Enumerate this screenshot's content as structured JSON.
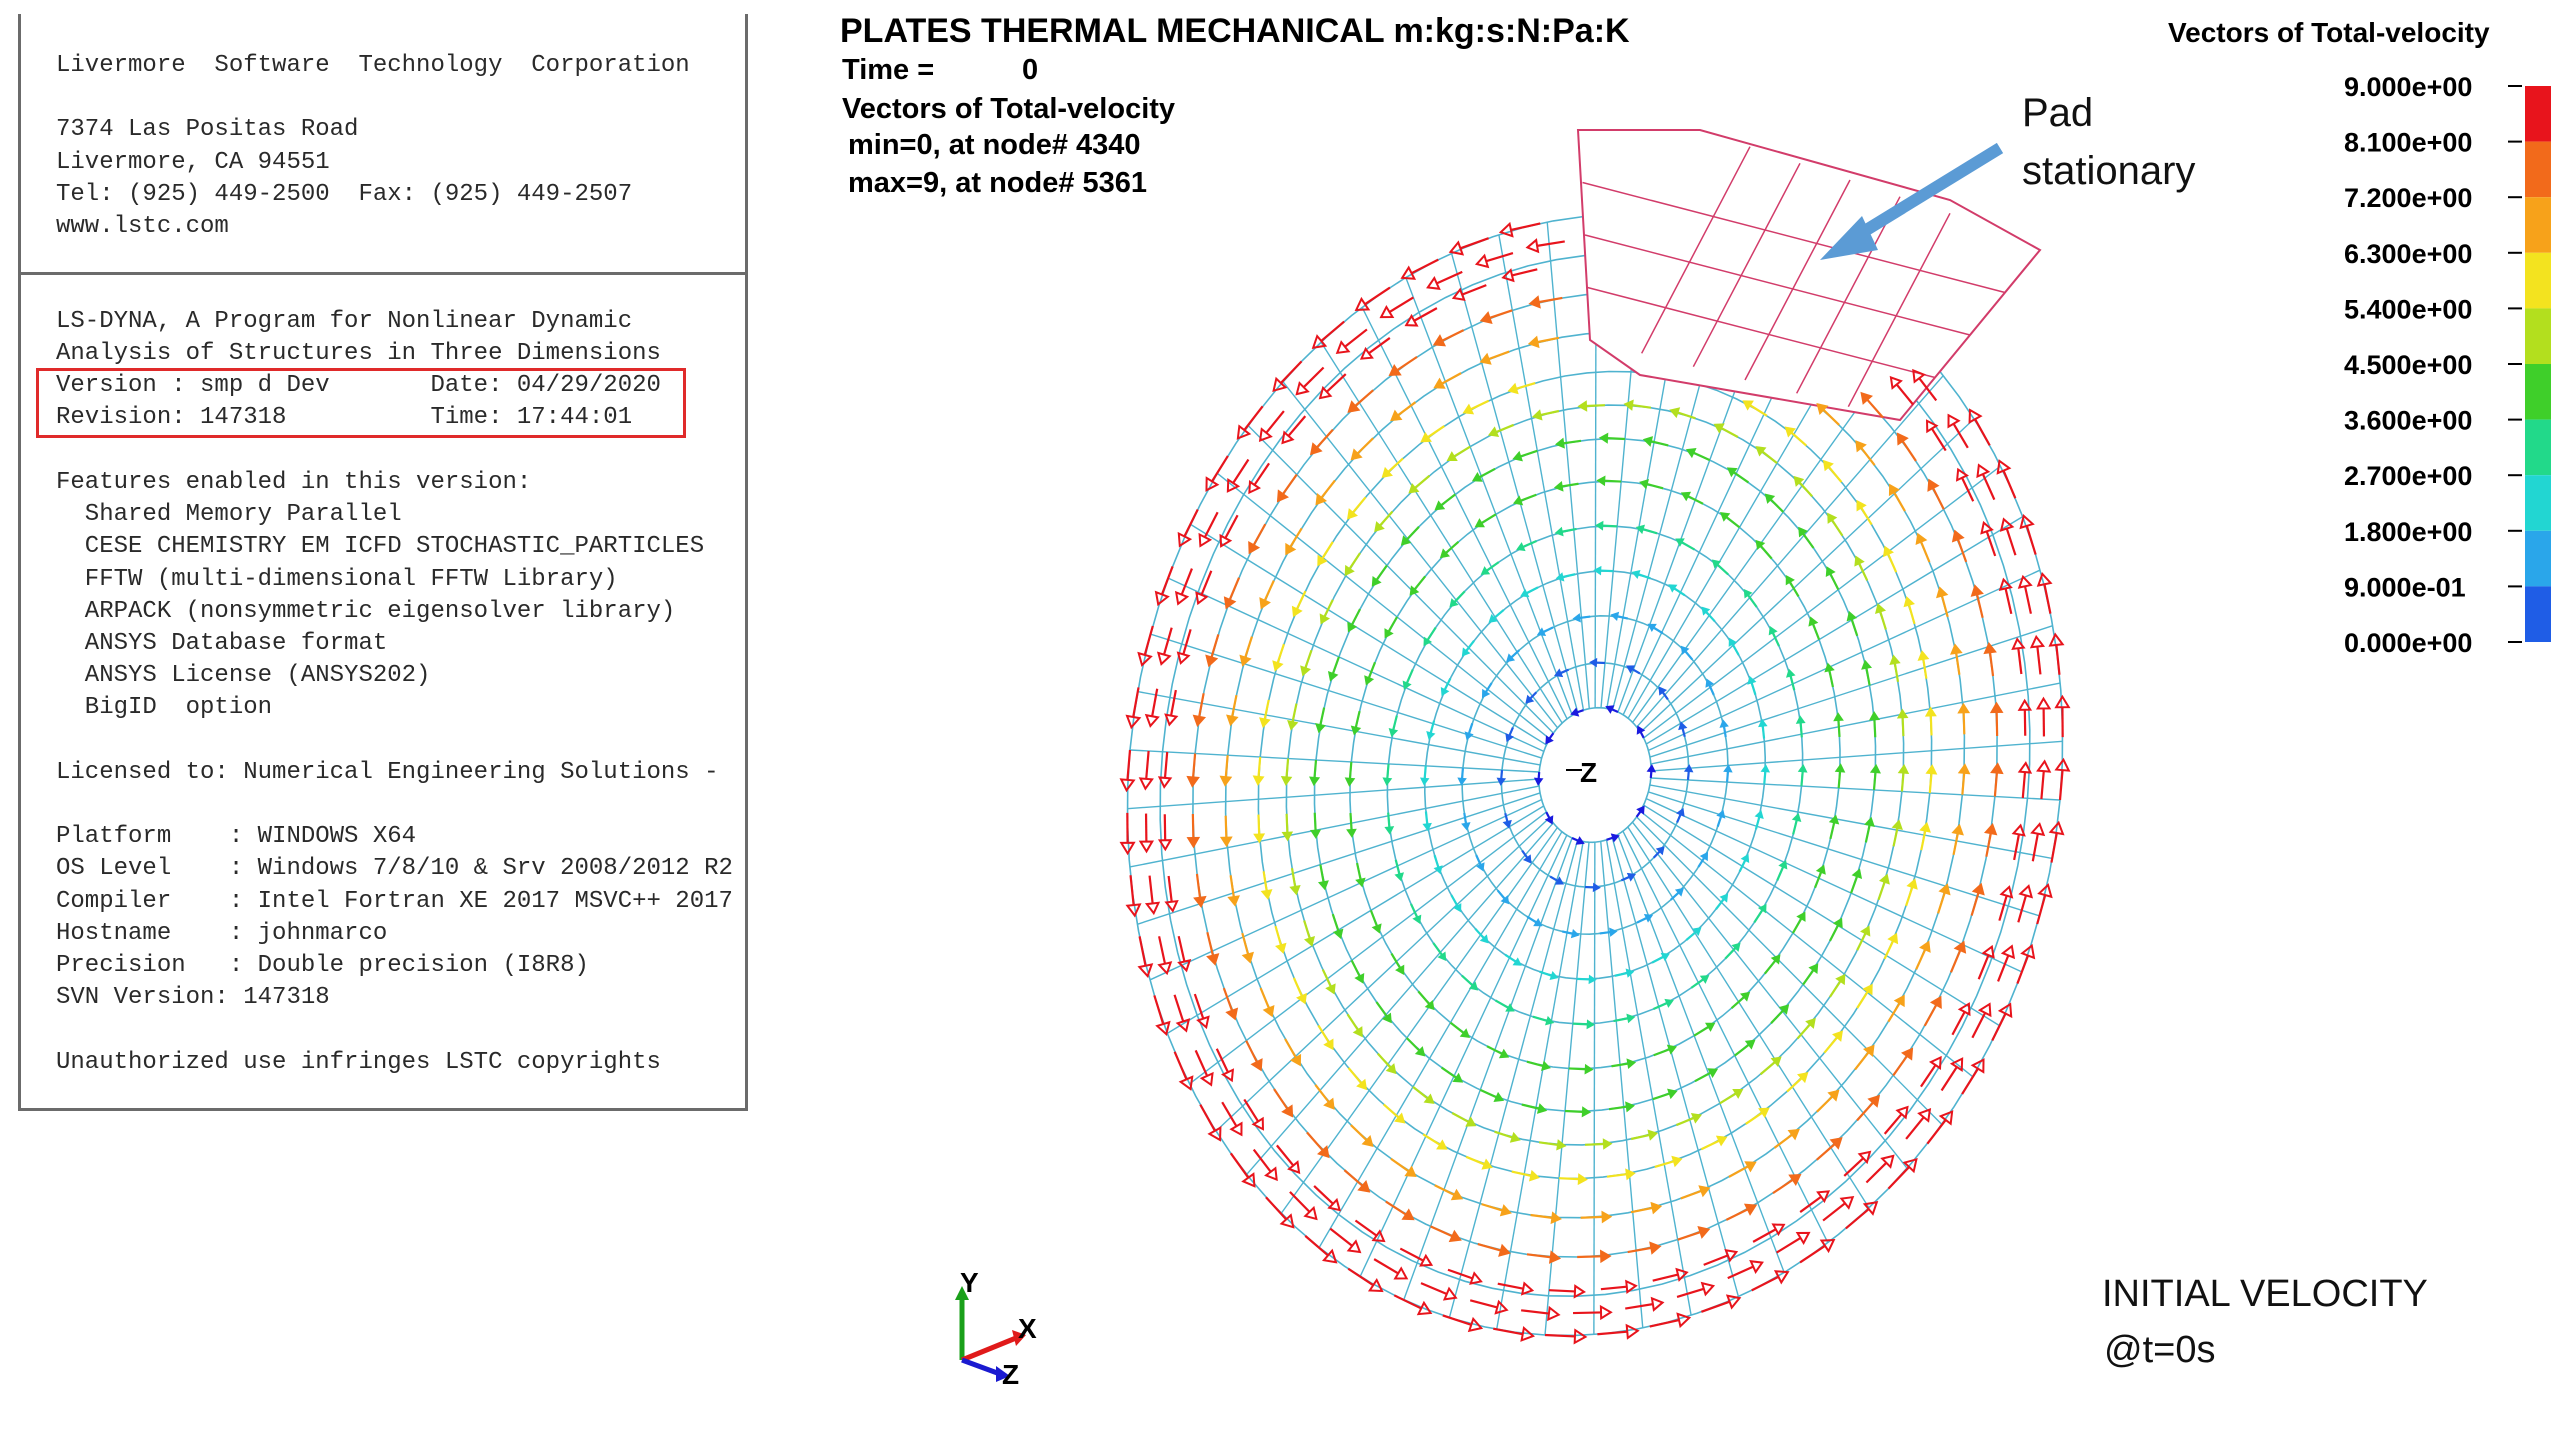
{
  "header_panel": {
    "company_block": [
      "Livermore  Software  Technology  Corporation",
      "",
      "7374 Las Positas Road",
      "Livermore, CA 94551",
      "Tel: (925) 449-2500  Fax: (925) 449-2507",
      "www.lstc.com"
    ],
    "program_block": [
      "LS-DYNA, A Program for Nonlinear Dynamic",
      "Analysis of Structures in Three Dimensions"
    ],
    "version_block": [
      "Version : smp d Dev       Date: 04/29/2020",
      "Revision: 147318          Time: 17:44:01"
    ],
    "features_block": [
      "Features enabled in this version:",
      "  Shared Memory Parallel",
      "  CESE CHEMISTRY EM ICFD STOCHASTIC_PARTICLES",
      "  FFTW (multi-dimensional FFTW Library)",
      "  ARPACK (nonsymmetric eigensolver library)",
      "  ANSYS Database format",
      "  ANSYS License (ANSYS202)",
      "  BigID  option",
      "",
      "Licensed to: Numerical Engineering Solutions -",
      "",
      "Platform    : WINDOWS X64",
      "OS Level    : Windows 7/8/10 & Srv 2008/2012 R2",
      "Compiler    : Intel Fortran XE 2017 MSVC++ 2017",
      "Hostname    : johnmarco",
      "Precision   : Double precision (I8R8)",
      "SVN Version: 147318",
      "",
      "Unauthorized use infringes LSTC copyrights"
    ]
  },
  "plot": {
    "title": "PLATES THERMAL MECHANICAL m:kg:s:N:Pa:K",
    "time_label": "Time =",
    "time_value": "0",
    "result_label": "Vectors of Total-velocity",
    "min_text": "min=0, at node# 4340",
    "max_text": "max=9, at node# 5361",
    "center_axis_label": "Z"
  },
  "legend": {
    "title": "Vectors of Total-velocity",
    "entries": [
      {
        "label": "9.000e+00",
        "color": "#e8141c"
      },
      {
        "label": "8.100e+00",
        "color": "#f26a1b"
      },
      {
        "label": "7.200e+00",
        "color": "#f7a21a"
      },
      {
        "label": "6.300e+00",
        "color": "#f3e31f"
      },
      {
        "label": "5.400e+00",
        "color": "#b3df1e"
      },
      {
        "label": "4.500e+00",
        "color": "#3fcf2a"
      },
      {
        "label": "3.600e+00",
        "color": "#22d98a"
      },
      {
        "label": "2.700e+00",
        "color": "#22d6d2"
      },
      {
        "label": "1.800e+00",
        "color": "#2aa6ea"
      },
      {
        "label": "9.000e-01",
        "color": "#1f5de6"
      },
      {
        "label": "0.000e+00",
        "color": "#1a1adf"
      }
    ]
  },
  "annotations": {
    "pad_line1": "Pad",
    "pad_line2": "stationary",
    "initial_line1": "INITIAL VELOCITY",
    "initial_line2": "@t=0s"
  },
  "triad": {
    "x_label": "X",
    "y_label": "Y",
    "z_label": "Z",
    "x_color": "#e01a1a",
    "y_color": "#1aa01a",
    "z_color": "#1a1ad0"
  },
  "colors": {
    "mesh": "#4fb3cf",
    "pad_mesh": "#d23c6a",
    "annotation_arrow": "#5b9bd5",
    "highlight_box": "#e02a2a"
  }
}
